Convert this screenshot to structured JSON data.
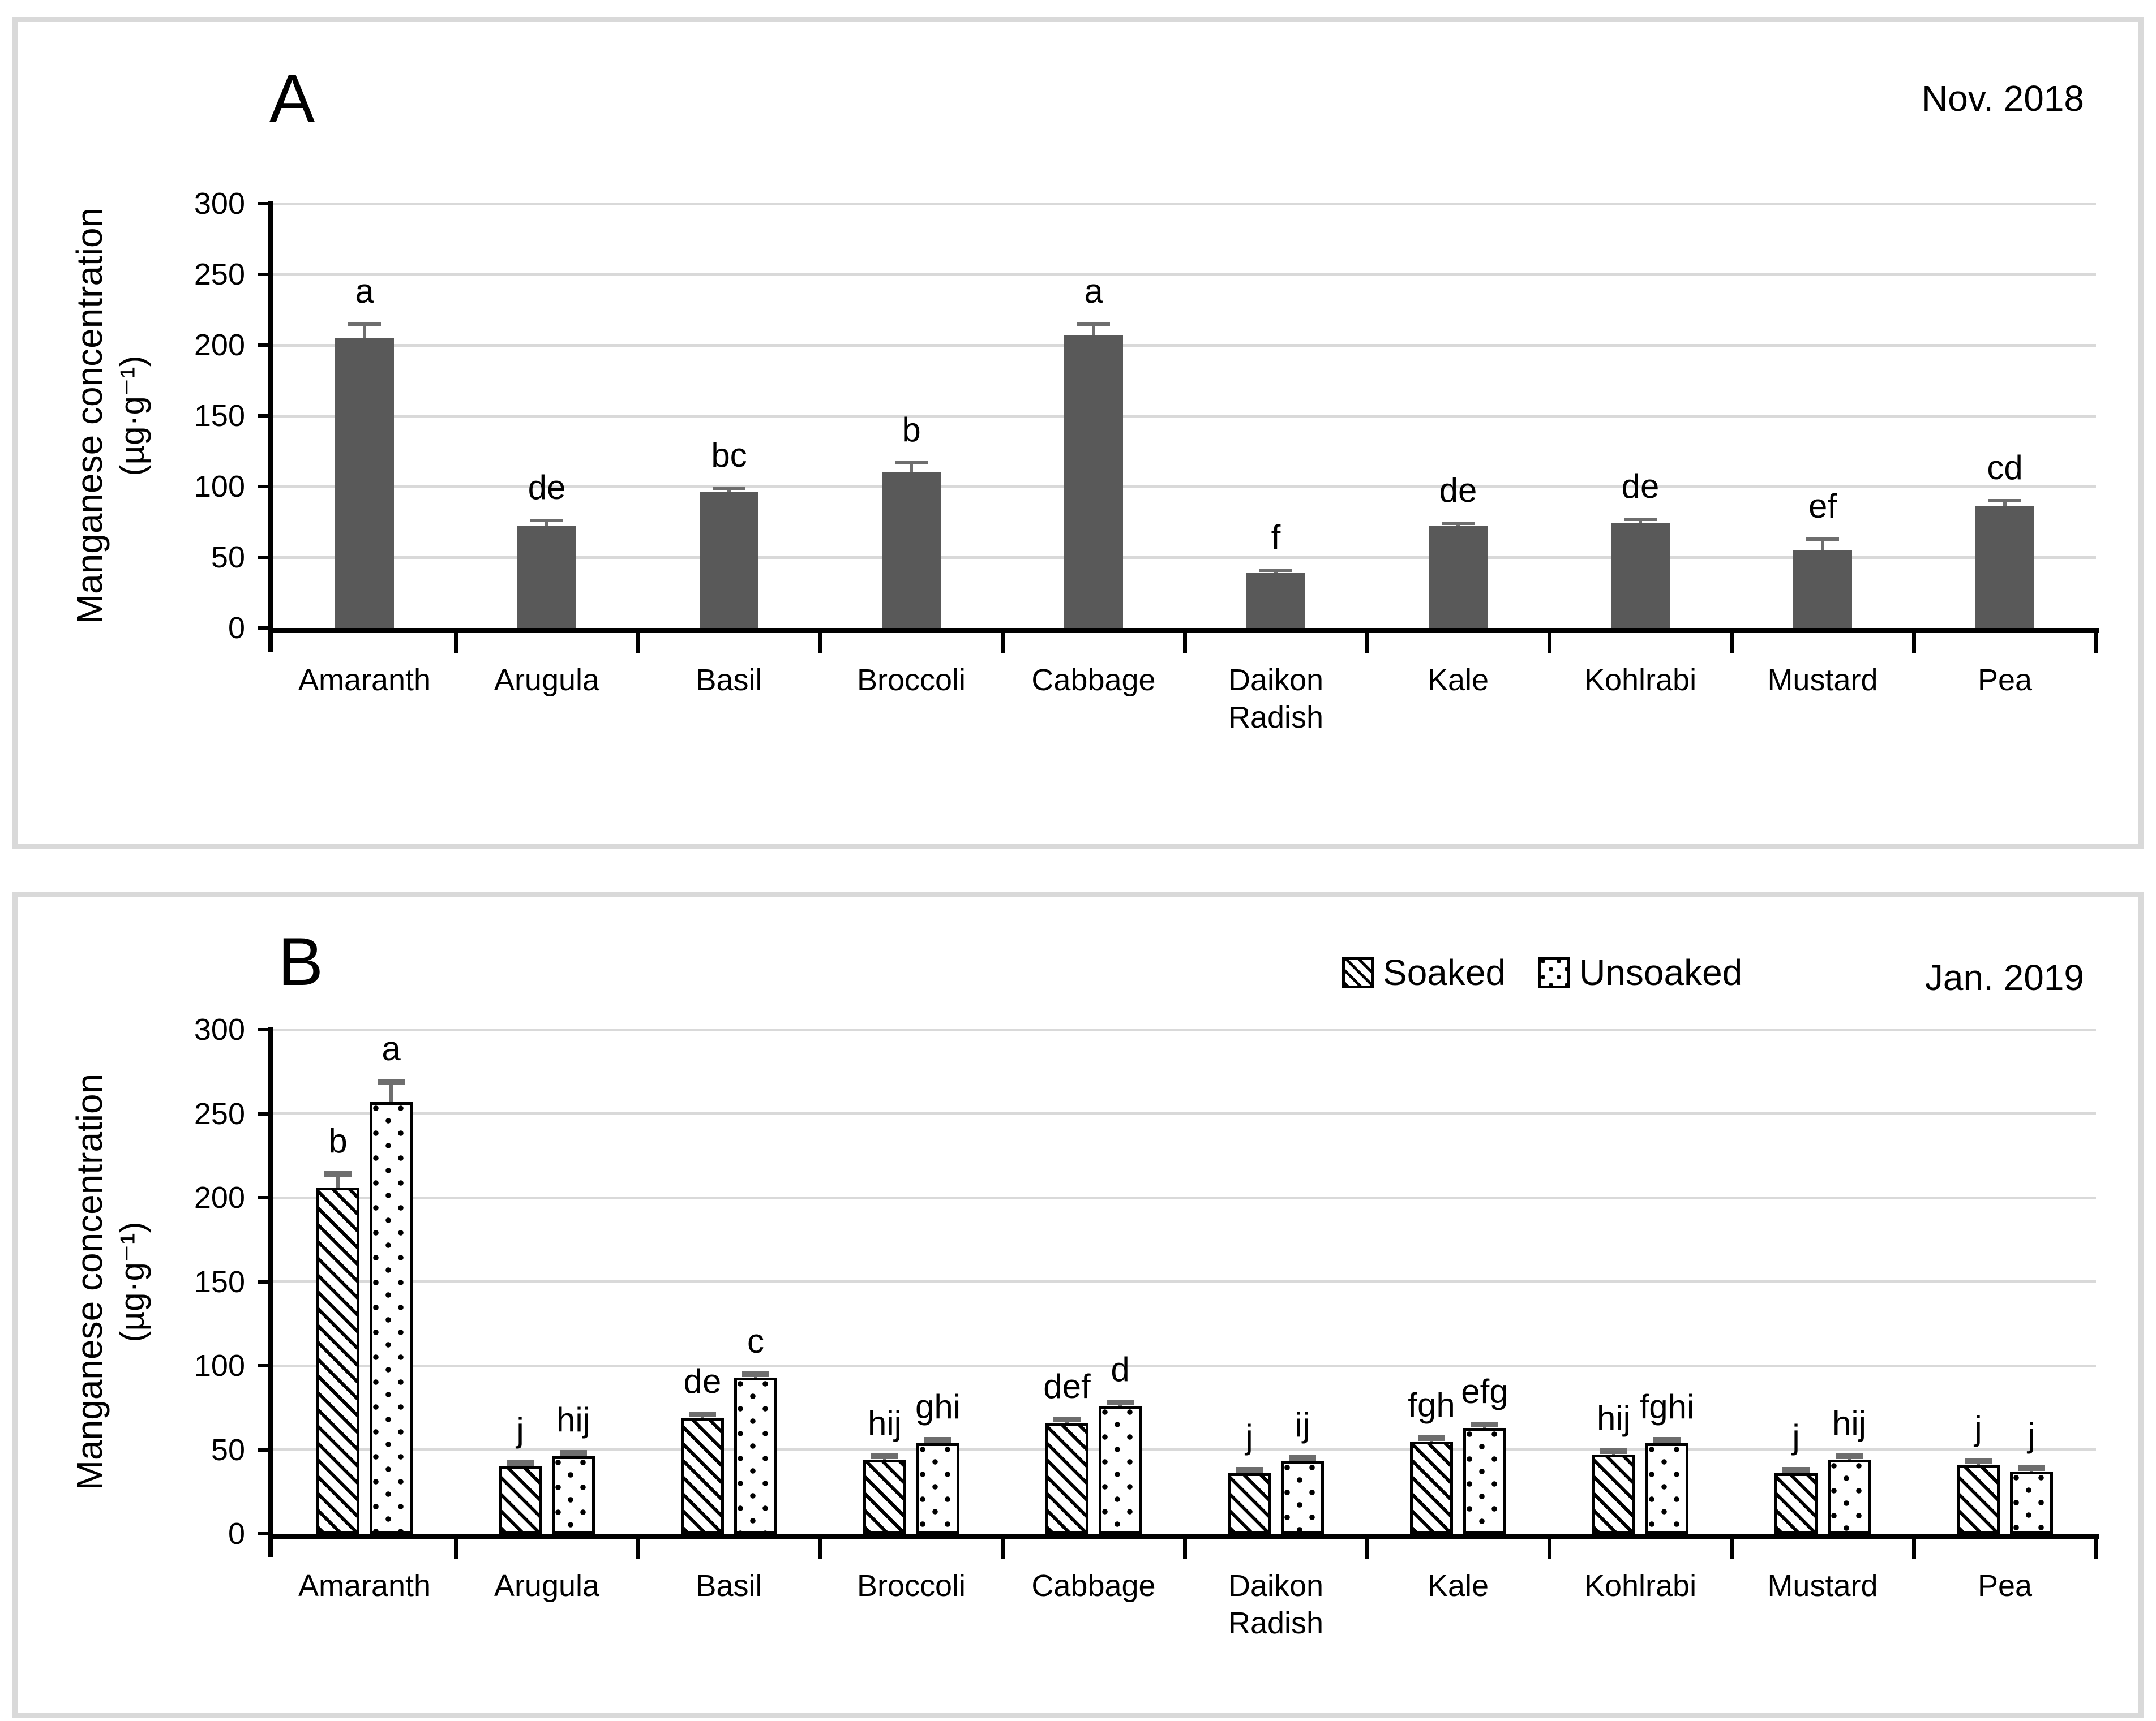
{
  "chart_data": [
    {
      "type": "bar",
      "panel_label": "A",
      "annotation": "Nov. 2018",
      "ylabel_line1": "Manganese concentration",
      "ylabel_line2": "(µg·g⁻¹)",
      "ylim": [
        0,
        300
      ],
      "yticks": [
        0,
        50,
        100,
        150,
        200,
        250,
        300
      ],
      "grid": "horizontal",
      "categories": [
        "Amaranth",
        "Arugula",
        "Basil",
        "Broccoli",
        "Cabbage",
        "Daikon Radish",
        "Kale",
        "Kohlrabi",
        "Mustard",
        "Pea"
      ],
      "series": [
        {
          "name": "",
          "style": "solid",
          "values": [
            205,
            72,
            96,
            110,
            207,
            39,
            72,
            74,
            55,
            86
          ],
          "errors": [
            10,
            4,
            3,
            7,
            8,
            2,
            2,
            3,
            8,
            4
          ],
          "letters": [
            "a",
            "de",
            "bc",
            "b",
            "a",
            "f",
            "de",
            "de",
            "ef",
            "cd"
          ]
        }
      ],
      "bar_color": "#595959",
      "grid_color": "#d9d9d9"
    },
    {
      "type": "bar",
      "panel_label": "B",
      "annotation": "Jan. 2019",
      "ylabel_line1": "Manganese concentration",
      "ylabel_line2": "(µg·g⁻¹)",
      "ylim": [
        0,
        300
      ],
      "yticks": [
        0,
        50,
        100,
        150,
        200,
        250,
        300
      ],
      "grid": "horizontal",
      "legend_position": "top-right",
      "categories": [
        "Amaranth",
        "Arugula",
        "Basil",
        "Broccoli",
        "Cabbage",
        "Daikon Radish",
        "Kale",
        "Kohlrabi",
        "Mustard",
        "Pea"
      ],
      "series": [
        {
          "name": "Soaked",
          "style": "diagonal-hatch",
          "values": [
            206,
            40,
            69,
            44,
            66,
            36,
            55,
            47,
            36,
            41
          ],
          "errors": [
            8,
            2,
            2,
            2,
            2,
            2,
            2,
            2,
            2,
            2
          ],
          "letters": [
            "b",
            "j",
            "de",
            "hij",
            "def",
            "j",
            "fgh",
            "hij",
            "j",
            "j"
          ]
        },
        {
          "name": "Unsoaked",
          "style": "dots",
          "values": [
            257,
            46,
            93,
            54,
            76,
            43,
            63,
            54,
            44,
            37
          ],
          "errors": [
            12,
            2,
            2,
            2,
            2,
            2,
            2,
            2,
            2,
            2
          ],
          "letters": [
            "a",
            "hij",
            "c",
            "ghi",
            "d",
            "ij",
            "efg",
            "fghi",
            "hij",
            "j"
          ]
        }
      ],
      "grid_color": "#d9d9d9"
    }
  ]
}
